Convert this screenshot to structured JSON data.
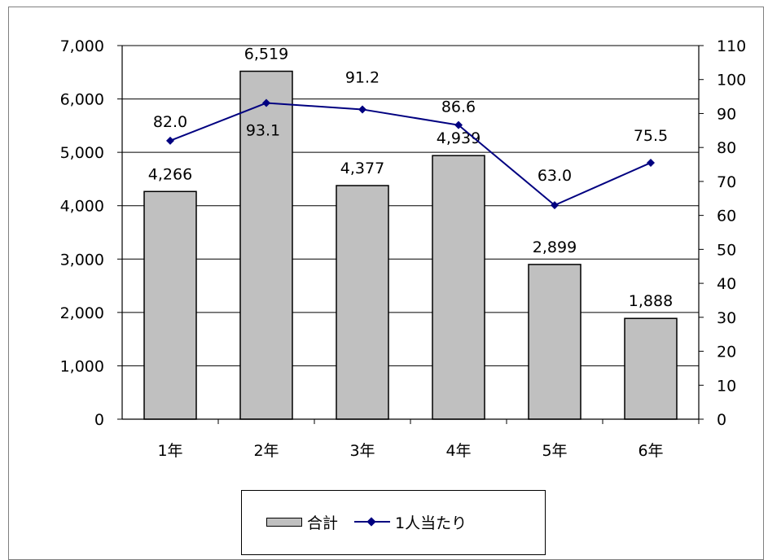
{
  "chart_data": {
    "type": "bar",
    "categories": [
      "1年",
      "2年",
      "3年",
      "4年",
      "5年",
      "6年"
    ],
    "series": [
      {
        "name": "合計",
        "type": "bar",
        "axis": "left",
        "color": "#c0c0c0",
        "values": [
          4266,
          6519,
          4377,
          4939,
          2899,
          1888
        ],
        "labels": [
          "4,266",
          "6,519",
          "4,377",
          "4,939",
          "2,899",
          "1,888"
        ]
      },
      {
        "name": "1人当たり",
        "type": "line",
        "axis": "right",
        "color": "#000080",
        "values": [
          82.0,
          93.1,
          91.2,
          86.6,
          63.0,
          75.5
        ],
        "labels": [
          "82.0",
          "93.1",
          "91.2",
          "86.6",
          "63.0",
          "75.5"
        ]
      }
    ],
    "y_left": {
      "ylim": [
        0,
        7000
      ],
      "ticks": [
        "0",
        "1,000",
        "2,000",
        "3,000",
        "4,000",
        "5,000",
        "6,000",
        "7,000"
      ]
    },
    "y_right": {
      "ylim": [
        0,
        110
      ],
      "ticks": [
        "0",
        "10",
        "20",
        "30",
        "40",
        "50",
        "60",
        "70",
        "80",
        "90",
        "100",
        "110"
      ]
    },
    "grid": true,
    "legend": "bottom"
  }
}
